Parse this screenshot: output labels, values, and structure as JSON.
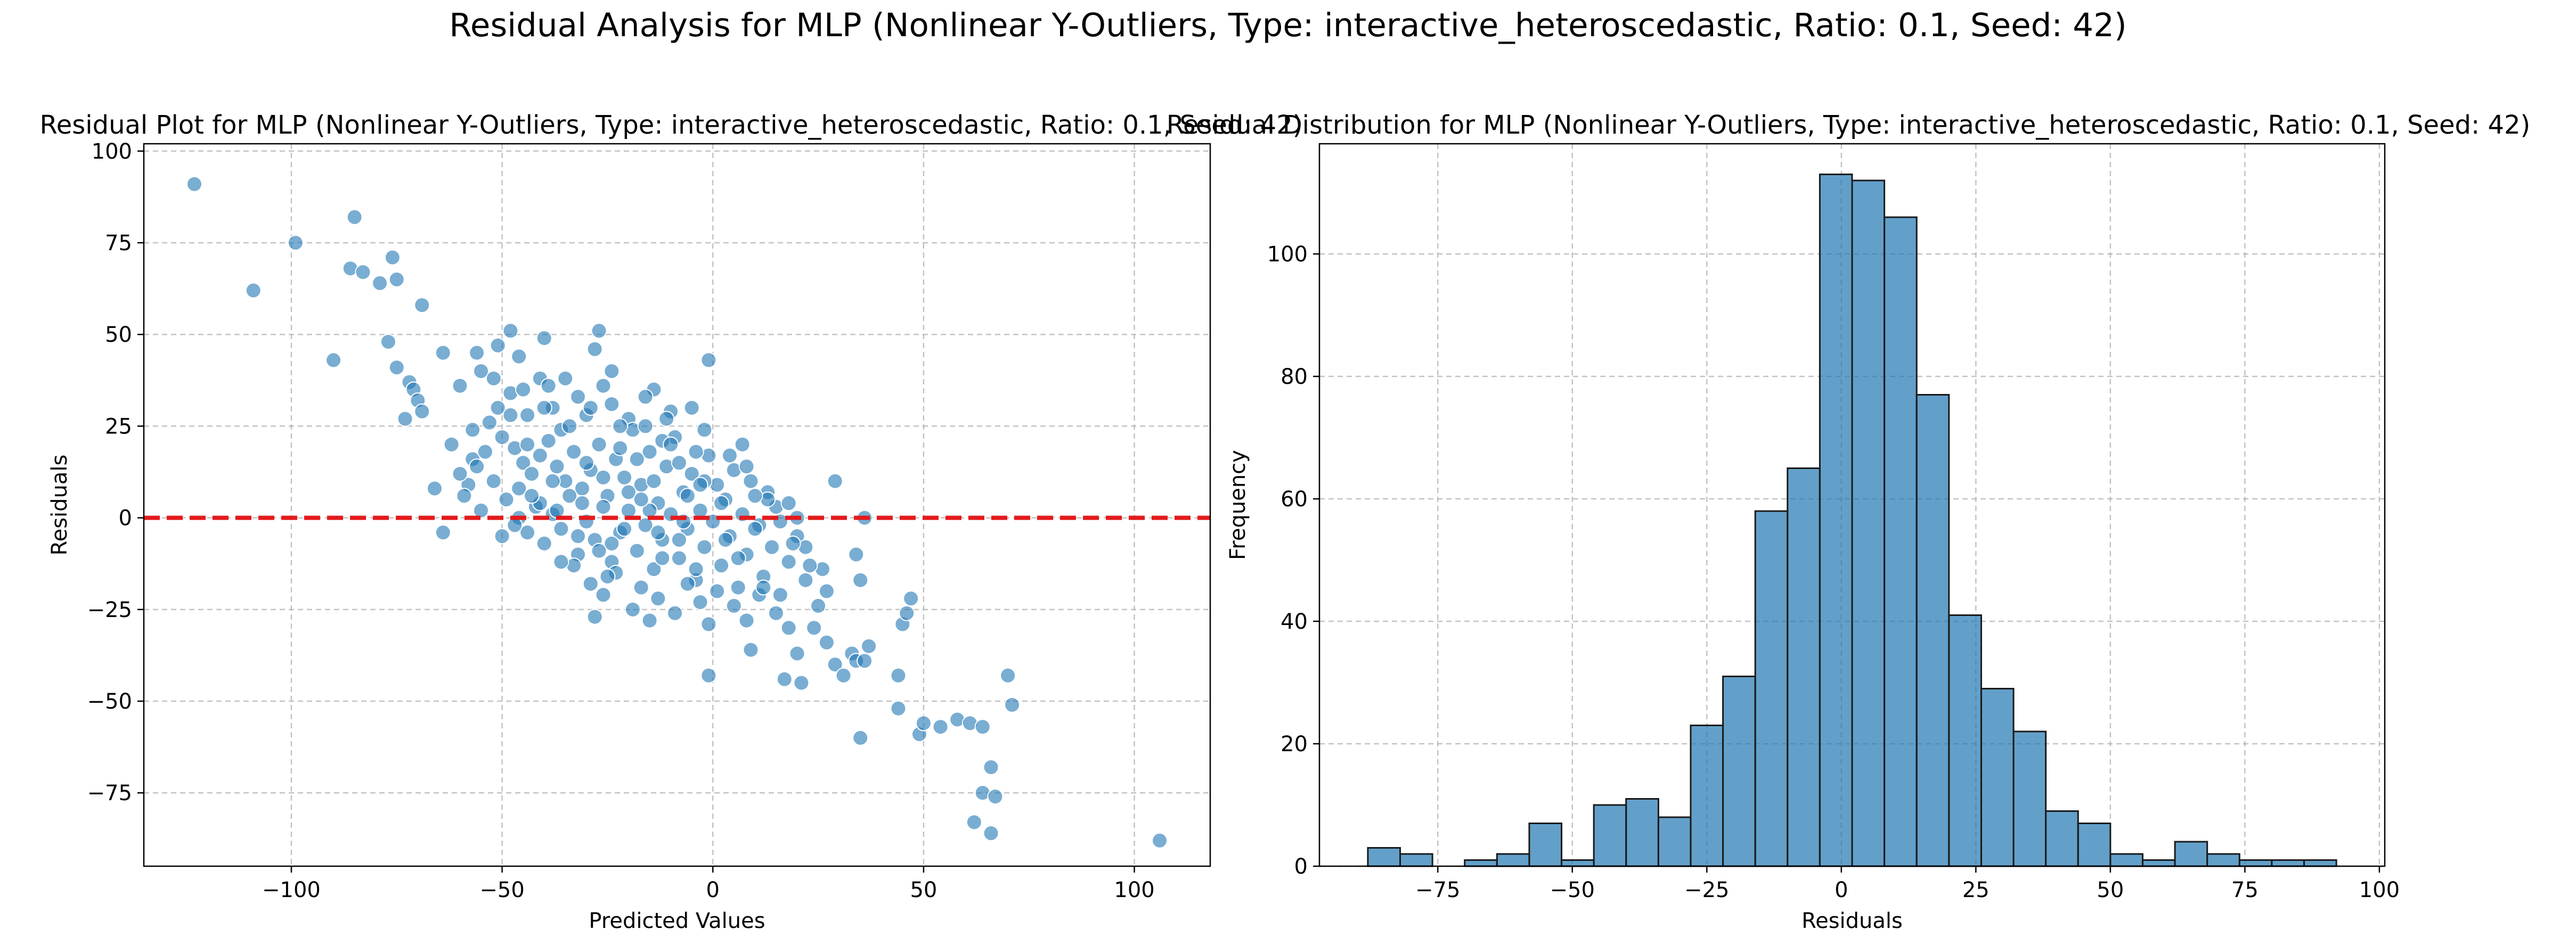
{
  "suptitle": "Residual Analysis for MLP (Nonlinear Y-Outliers, Type: interactive_heteroscedastic, Ratio: 0.1, Seed: 42)",
  "colors": {
    "points": "#1f77b4",
    "bars": "#1f77b4",
    "zero_line": "#e41a1c",
    "grid": "#b0b0b0"
  },
  "chart_data": [
    {
      "type": "scatter",
      "title": "Residual Plot for MLP (Nonlinear Y-Outliers, Type: interactive_heteroscedastic, Ratio: 0.1, Seed: 42)",
      "xlabel": "Predicted Values",
      "ylabel": "Residuals",
      "xlim": [
        -135,
        118
      ],
      "ylim": [
        -95,
        102
      ],
      "xticks": [
        -100,
        -50,
        0,
        50,
        100
      ],
      "yticks": [
        -75,
        -50,
        -25,
        0,
        25,
        50,
        75,
        100
      ],
      "grid": true,
      "reference_line": {
        "y": 0,
        "style": "dashed",
        "color": "red"
      },
      "points": [
        [
          -123,
          91
        ],
        [
          -109,
          62
        ],
        [
          -99,
          75
        ],
        [
          -90,
          43
        ],
        [
          -85,
          82
        ],
        [
          -86,
          68
        ],
        [
          -83,
          67
        ],
        [
          -79,
          64
        ],
        [
          -76,
          71
        ],
        [
          -75,
          65
        ],
        [
          -69,
          58
        ],
        [
          -77,
          48
        ],
        [
          -75,
          41
        ],
        [
          -72,
          37
        ],
        [
          -71,
          35
        ],
        [
          -70,
          32
        ],
        [
          -69,
          29
        ],
        [
          -73,
          27
        ],
        [
          -64,
          45
        ],
        [
          -60,
          36
        ],
        [
          -62,
          20
        ],
        [
          -57,
          16
        ],
        [
          -58,
          9
        ],
        [
          -59,
          6
        ],
        [
          -55,
          2
        ],
        [
          -64,
          -4
        ],
        [
          -48,
          51
        ],
        [
          -51,
          47
        ],
        [
          -46,
          44
        ],
        [
          -40,
          49
        ],
        [
          -41,
          38
        ],
        [
          -27,
          51
        ],
        [
          -28,
          46
        ],
        [
          -1,
          43
        ],
        [
          -56,
          45
        ],
        [
          -55,
          40
        ],
        [
          -52,
          38
        ],
        [
          -48,
          34
        ],
        [
          -44,
          28
        ],
        [
          -38,
          30
        ],
        [
          -36,
          24
        ],
        [
          -32,
          33
        ],
        [
          -30,
          28
        ],
        [
          -26,
          36
        ],
        [
          -24,
          31
        ],
        [
          -20,
          27
        ],
        [
          -14,
          35
        ],
        [
          -10,
          29
        ],
        [
          -5,
          30
        ],
        [
          -53,
          26
        ],
        [
          -50,
          22
        ],
        [
          -47,
          19
        ],
        [
          -45,
          15
        ],
        [
          -43,
          12
        ],
        [
          -41,
          17
        ],
        [
          -39,
          21
        ],
        [
          -37,
          14
        ],
        [
          -35,
          10
        ],
        [
          -33,
          18
        ],
        [
          -31,
          8
        ],
        [
          -29,
          13
        ],
        [
          -27,
          20
        ],
        [
          -25,
          6
        ],
        [
          -23,
          16
        ],
        [
          -21,
          11
        ],
        [
          -19,
          24
        ],
        [
          -17,
          9
        ],
        [
          -15,
          18
        ],
        [
          -13,
          4
        ],
        [
          -11,
          14
        ],
        [
          -9,
          22
        ],
        [
          -7,
          7
        ],
        [
          -5,
          12
        ],
        [
          -3,
          2
        ],
        [
          -1,
          17
        ],
        [
          1,
          9
        ],
        [
          3,
          5
        ],
        [
          5,
          13
        ],
        [
          7,
          1
        ],
        [
          9,
          10
        ],
        [
          11,
          -2
        ],
        [
          13,
          7
        ],
        [
          15,
          3
        ],
        [
          -52,
          10
        ],
        [
          -49,
          5
        ],
        [
          -46,
          0
        ],
        [
          -44,
          -4
        ],
        [
          -42,
          3
        ],
        [
          -40,
          -7
        ],
        [
          -38,
          1
        ],
        [
          -36,
          -3
        ],
        [
          -34,
          6
        ],
        [
          -32,
          -10
        ],
        [
          -30,
          -1
        ],
        [
          -28,
          -6
        ],
        [
          -26,
          3
        ],
        [
          -24,
          -12
        ],
        [
          -22,
          -4
        ],
        [
          -20,
          2
        ],
        [
          -18,
          -9
        ],
        [
          -16,
          -2
        ],
        [
          -14,
          -14
        ],
        [
          -12,
          -6
        ],
        [
          -10,
          1
        ],
        [
          -8,
          -11
        ],
        [
          -6,
          -3
        ],
        [
          -4,
          -17
        ],
        [
          -2,
          -8
        ],
        [
          0,
          -1
        ],
        [
          2,
          -13
        ],
        [
          4,
          -5
        ],
        [
          6,
          -19
        ],
        [
          8,
          -10
        ],
        [
          10,
          -3
        ],
        [
          12,
          -16
        ],
        [
          14,
          -8
        ],
        [
          16,
          -21
        ],
        [
          18,
          -12
        ],
        [
          20,
          -5
        ],
        [
          22,
          -17
        ],
        [
          -33,
          -13
        ],
        [
          -29,
          -18
        ],
        [
          -26,
          -21
        ],
        [
          -23,
          -15
        ],
        [
          -19,
          -25
        ],
        [
          -17,
          -19
        ],
        [
          -13,
          -22
        ],
        [
          -9,
          -26
        ],
        [
          -6,
          -18
        ],
        [
          -3,
          -23
        ],
        [
          1,
          -20
        ],
        [
          5,
          -24
        ],
        [
          8,
          -28
        ],
        [
          11,
          -21
        ],
        [
          15,
          -26
        ],
        [
          18,
          -30
        ],
        [
          -28,
          -27
        ],
        [
          -15,
          -28
        ],
        [
          -1,
          -43
        ],
        [
          9,
          -36
        ],
        [
          17,
          -44
        ],
        [
          21,
          -45
        ],
        [
          20,
          -37
        ],
        [
          24,
          -30
        ],
        [
          27,
          -34
        ],
        [
          29,
          -40
        ],
        [
          31,
          -43
        ],
        [
          33,
          -37
        ],
        [
          34,
          -39
        ],
        [
          35,
          -60
        ],
        [
          36,
          -39
        ],
        [
          37,
          -35
        ],
        [
          44,
          -43
        ],
        [
          45,
          -29
        ],
        [
          46,
          -26
        ],
        [
          47,
          -22
        ],
        [
          44,
          -52
        ],
        [
          49,
          -59
        ],
        [
          50,
          -56
        ],
        [
          54,
          -57
        ],
        [
          58,
          -55
        ],
        [
          61,
          -56
        ],
        [
          62,
          -83
        ],
        [
          64,
          -57
        ],
        [
          64,
          -75
        ],
        [
          66,
          -86
        ],
        [
          66,
          -68
        ],
        [
          67,
          -76
        ],
        [
          70,
          -43
        ],
        [
          71,
          -51
        ],
        [
          106,
          -88
        ],
        [
          29,
          10
        ],
        [
          36,
          0
        ],
        [
          35,
          -17
        ],
        [
          34,
          -10
        ],
        [
          25,
          -24
        ],
        [
          26,
          -14
        ],
        [
          27,
          -20
        ],
        [
          22,
          -8
        ],
        [
          20,
          0
        ],
        [
          18,
          4
        ],
        [
          13,
          5
        ],
        [
          8,
          14
        ],
        [
          4,
          17
        ],
        [
          -2,
          10
        ],
        [
          -8,
          15
        ],
        [
          -12,
          21
        ],
        [
          -16,
          25
        ],
        [
          -22,
          19
        ],
        [
          -30,
          15
        ],
        [
          -34,
          25
        ],
        [
          -38,
          10
        ],
        [
          -41,
          4
        ],
        [
          -47,
          -2
        ],
        [
          -50,
          -5
        ],
        [
          -36,
          -12
        ],
        [
          -24,
          -7
        ],
        [
          -12,
          -11
        ],
        [
          -4,
          -14
        ],
        [
          6,
          -11
        ],
        [
          12,
          -19
        ],
        [
          2,
          4
        ],
        [
          -6,
          6
        ],
        [
          -14,
          10
        ],
        [
          -20,
          7
        ],
        [
          -26,
          11
        ],
        [
          -18,
          16
        ],
        [
          -10,
          20
        ],
        [
          -2,
          24
        ],
        [
          -44,
          20
        ],
        [
          -32,
          -5
        ],
        [
          -22,
          25
        ],
        [
          -8,
          -6
        ],
        [
          3,
          -6
        ],
        [
          -15,
          2
        ],
        [
          -25,
          -16
        ],
        [
          -40,
          30
        ],
        [
          -46,
          8
        ],
        [
          -11,
          27
        ],
        [
          -3,
          9
        ],
        [
          7,
          20
        ],
        [
          10,
          6
        ],
        [
          16,
          -1
        ],
        [
          19,
          -7
        ],
        [
          23,
          -13
        ],
        [
          -37,
          2
        ],
        [
          -27,
          -9
        ],
        [
          -17,
          5
        ],
        [
          -7,
          -1
        ],
        [
          -21,
          -3
        ],
        [
          -31,
          4
        ],
        [
          -13,
          -4
        ],
        [
          -1,
          -29
        ],
        [
          -45,
          35
        ],
        [
          -39,
          36
        ],
        [
          -35,
          38
        ],
        [
          -24,
          40
        ],
        [
          -60,
          12
        ],
        [
          -57,
          24
        ],
        [
          -54,
          18
        ],
        [
          -51,
          30
        ],
        [
          -66,
          8
        ],
        [
          -56,
          14
        ],
        [
          -48,
          28
        ],
        [
          -43,
          6
        ],
        [
          -29,
          30
        ],
        [
          -16,
          33
        ],
        [
          -4,
          18
        ]
      ]
    },
    {
      "type": "bar",
      "title": "Residual Distribution for MLP (Nonlinear Y-Outliers, Type: interactive_heteroscedastic, Ratio: 0.1, Seed: 42)",
      "xlabel": "Residuals",
      "ylabel": "Frequency",
      "xlim": [
        -97,
        101
      ],
      "ylim": [
        0,
        118
      ],
      "xticks": [
        -75,
        -50,
        -25,
        0,
        25,
        50,
        75,
        100
      ],
      "yticks": [
        0,
        20,
        40,
        60,
        80,
        100
      ],
      "grid": true,
      "bin_start": -88,
      "bin_width": 6,
      "counts": [
        3,
        2,
        0,
        1,
        2,
        7,
        1,
        10,
        11,
        8,
        23,
        31,
        58,
        65,
        113,
        112,
        106,
        77,
        41,
        29,
        22,
        9,
        7,
        2,
        1,
        4,
        2,
        1,
        1,
        1
      ]
    }
  ]
}
